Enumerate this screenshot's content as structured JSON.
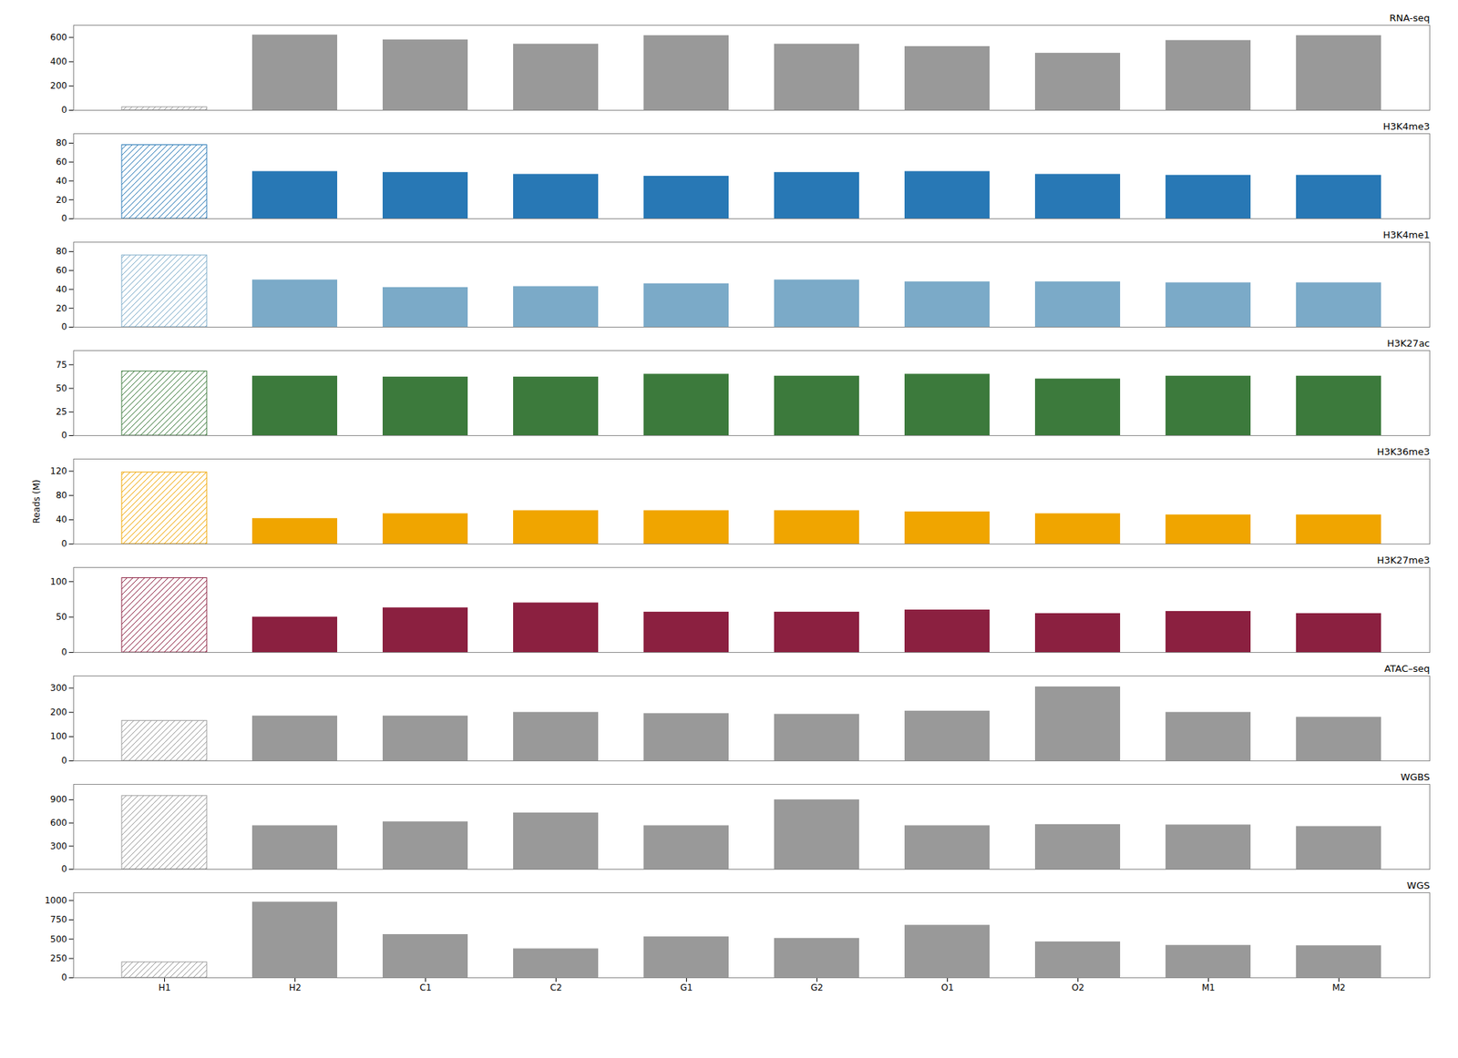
{
  "chart_data": [
    {
      "type": "bar",
      "title": "RNA-seq",
      "categories": [
        "H1",
        "H2",
        "C1",
        "C2",
        "G1",
        "G2",
        "O1",
        "O2",
        "M1",
        "M2"
      ],
      "values": [
        25,
        620,
        580,
        545,
        615,
        545,
        525,
        470,
        575,
        615
      ],
      "color": "#999999",
      "ylim": [
        0,
        700
      ],
      "yticks": [
        0,
        200,
        400,
        600
      ],
      "tick_labels": "y"
    },
    {
      "type": "bar",
      "title": "H3K4me3",
      "categories": [
        "H1",
        "H2",
        "C1",
        "C2",
        "G1",
        "G2",
        "O1",
        "O2",
        "M1",
        "M2"
      ],
      "values": [
        78,
        50,
        49,
        47,
        45,
        49,
        50,
        47,
        46,
        46
      ],
      "color": "#2878b5",
      "ylim": [
        0,
        90
      ],
      "yticks": [
        0,
        20,
        40,
        60,
        80
      ],
      "tick_labels": "y"
    },
    {
      "type": "bar",
      "title": "H3K4me1",
      "categories": [
        "H1",
        "H2",
        "C1",
        "C2",
        "G1",
        "G2",
        "O1",
        "O2",
        "M1",
        "M2"
      ],
      "values": [
        76,
        50,
        42,
        43,
        46,
        50,
        48,
        48,
        47,
        47
      ],
      "color": "#7baac8",
      "ylim": [
        0,
        90
      ],
      "yticks": [
        0,
        20,
        40,
        60,
        80
      ],
      "tick_labels": "y"
    },
    {
      "type": "bar",
      "title": "H3K27ac",
      "categories": [
        "H1",
        "H2",
        "C1",
        "C2",
        "G1",
        "G2",
        "O1",
        "O2",
        "M1",
        "M2"
      ],
      "values": [
        68,
        63,
        62,
        62,
        65,
        63,
        65,
        60,
        63,
        63
      ],
      "color": "#3c7a3c",
      "ylim": [
        0,
        90
      ],
      "yticks": [
        0,
        25,
        50,
        75
      ],
      "tick_labels": "y"
    },
    {
      "type": "bar",
      "title": "H3K36me3",
      "ylabel": "Reads (M)",
      "categories": [
        "H1",
        "H2",
        "C1",
        "C2",
        "G1",
        "G2",
        "O1",
        "O2",
        "M1",
        "M2"
      ],
      "values": [
        118,
        42,
        50,
        55,
        55,
        55,
        53,
        50,
        48,
        48
      ],
      "color": "#f0a500",
      "ylim": [
        0,
        140
      ],
      "yticks": [
        0,
        40,
        80,
        120
      ],
      "tick_labels": "y"
    },
    {
      "type": "bar",
      "title": "H3K27me3",
      "categories": [
        "H1",
        "H2",
        "C1",
        "C2",
        "G1",
        "G2",
        "O1",
        "O2",
        "M1",
        "M2"
      ],
      "values": [
        105,
        50,
        63,
        70,
        57,
        57,
        60,
        55,
        58,
        55
      ],
      "color": "#8b2040",
      "ylim": [
        0,
        120
      ],
      "yticks": [
        0,
        50,
        100
      ],
      "tick_labels": "y"
    },
    {
      "type": "bar",
      "title": "ATAC–seq",
      "categories": [
        "H1",
        "H2",
        "C1",
        "C2",
        "G1",
        "G2",
        "O1",
        "O2",
        "M1",
        "M2"
      ],
      "values": [
        165,
        185,
        185,
        200,
        195,
        192,
        205,
        305,
        200,
        180
      ],
      "color": "#999999",
      "ylim": [
        0,
        350
      ],
      "yticks": [
        0,
        100,
        200,
        300
      ],
      "tick_labels": "y"
    },
    {
      "type": "bar",
      "title": "WGBS",
      "categories": [
        "H1",
        "H2",
        "C1",
        "C2",
        "G1",
        "G2",
        "O1",
        "O2",
        "M1",
        "M2"
      ],
      "values": [
        950,
        565,
        615,
        730,
        565,
        900,
        565,
        580,
        575,
        555
      ],
      "color": "#999999",
      "ylim": [
        0,
        1100
      ],
      "yticks": [
        0,
        300,
        600,
        900
      ],
      "tick_labels": "y"
    },
    {
      "type": "bar",
      "title": "WGS",
      "categories": [
        "H1",
        "H2",
        "C1",
        "C2",
        "G1",
        "G2",
        "O1",
        "O2",
        "M1",
        "M2"
      ],
      "values": [
        200,
        980,
        560,
        375,
        530,
        510,
        680,
        465,
        420,
        415
      ],
      "color": "#999999",
      "ylim": [
        0,
        1100
      ],
      "yticks": [
        0,
        250,
        500,
        750,
        1000
      ]
    }
  ]
}
